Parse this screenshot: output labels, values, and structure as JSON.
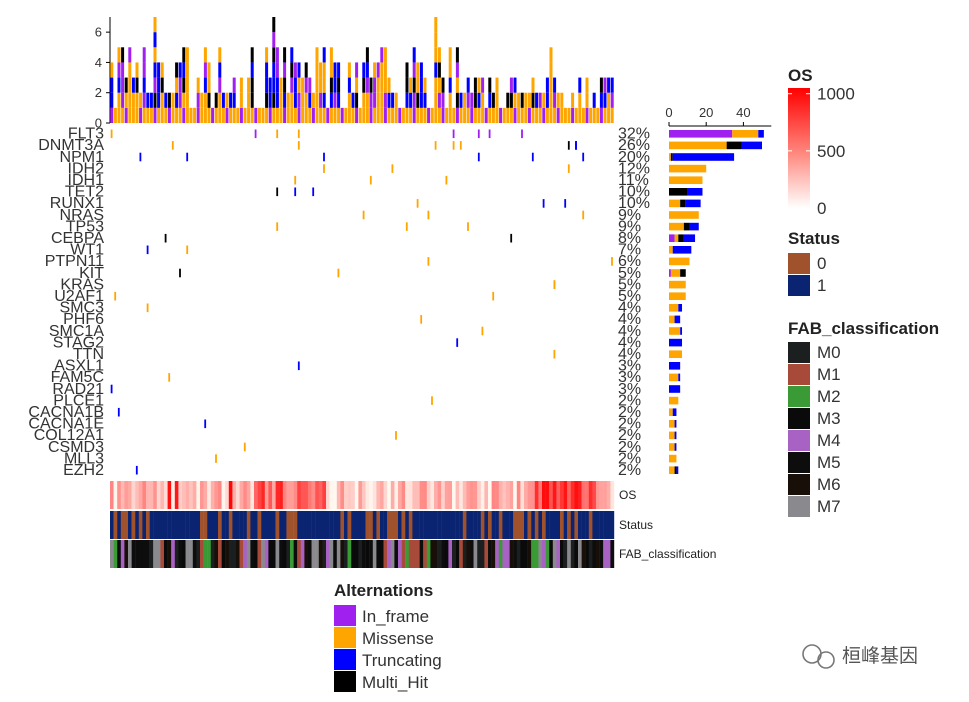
{
  "chart_data": {
    "type": "oncoplot",
    "top_barplot": {
      "y_ticks": [
        "0",
        "2",
        "4",
        "6"
      ],
      "y_range": [
        0,
        7
      ]
    },
    "right_barplot": {
      "x_ticks": [
        "0",
        "20",
        "40"
      ],
      "x_range": [
        0,
        55
      ]
    },
    "genes": [
      {
        "name": "FLT3",
        "pct": "32%",
        "counts": {
          "In_frame": 34,
          "Missense": 14,
          "Truncating": 3,
          "Multi_Hit": 0
        }
      },
      {
        "name": "DNMT3A",
        "pct": "26%",
        "counts": {
          "In_frame": 0,
          "Missense": 31,
          "Truncating": 11,
          "Multi_Hit": 8
        }
      },
      {
        "name": "NPM1",
        "pct": "20%",
        "counts": {
          "In_frame": 0,
          "Missense": 1,
          "Truncating": 33,
          "Multi_Hit": 1
        }
      },
      {
        "name": "IDH2",
        "pct": "12%",
        "counts": {
          "In_frame": 0,
          "Missense": 20,
          "Truncating": 0,
          "Multi_Hit": 0
        }
      },
      {
        "name": "IDH1",
        "pct": "11%",
        "counts": {
          "In_frame": 0,
          "Missense": 18,
          "Truncating": 0,
          "Multi_Hit": 0
        }
      },
      {
        "name": "TET2",
        "pct": "10%",
        "counts": {
          "In_frame": 0,
          "Missense": 0,
          "Truncating": 8,
          "Multi_Hit": 10
        }
      },
      {
        "name": "RUNX1",
        "pct": "10%",
        "counts": {
          "In_frame": 0,
          "Missense": 6,
          "Truncating": 8,
          "Multi_Hit": 3
        }
      },
      {
        "name": "NRAS",
        "pct": "9%",
        "counts": {
          "In_frame": 0,
          "Missense": 16,
          "Truncating": 0,
          "Multi_Hit": 0
        }
      },
      {
        "name": "TP53",
        "pct": "9%",
        "counts": {
          "In_frame": 0,
          "Missense": 8,
          "Truncating": 5,
          "Multi_Hit": 3
        }
      },
      {
        "name": "CEBPA",
        "pct": "8%",
        "counts": {
          "In_frame": 3,
          "Missense": 2,
          "Truncating": 6,
          "Multi_Hit": 3
        }
      },
      {
        "name": "WT1",
        "pct": "7%",
        "counts": {
          "In_frame": 0,
          "Missense": 2,
          "Truncating": 10,
          "Multi_Hit": 0
        }
      },
      {
        "name": "PTPN11",
        "pct": "6%",
        "counts": {
          "In_frame": 0,
          "Missense": 11,
          "Truncating": 0,
          "Multi_Hit": 0
        }
      },
      {
        "name": "KIT",
        "pct": "5%",
        "counts": {
          "In_frame": 1,
          "Missense": 5,
          "Truncating": 0,
          "Multi_Hit": 3
        }
      },
      {
        "name": "KRAS",
        "pct": "5%",
        "counts": {
          "In_frame": 0,
          "Missense": 9,
          "Truncating": 0,
          "Multi_Hit": 0
        }
      },
      {
        "name": "U2AF1",
        "pct": "5%",
        "counts": {
          "In_frame": 0,
          "Missense": 9,
          "Truncating": 0,
          "Multi_Hit": 0
        }
      },
      {
        "name": "SMC3",
        "pct": "4%",
        "counts": {
          "In_frame": 0,
          "Missense": 5,
          "Truncating": 2,
          "Multi_Hit": 0
        }
      },
      {
        "name": "PHF6",
        "pct": "4%",
        "counts": {
          "In_frame": 0,
          "Missense": 3,
          "Truncating": 3,
          "Multi_Hit": 0
        }
      },
      {
        "name": "SMC1A",
        "pct": "4%",
        "counts": {
          "In_frame": 0,
          "Missense": 6,
          "Truncating": 1,
          "Multi_Hit": 0
        }
      },
      {
        "name": "STAG2",
        "pct": "4%",
        "counts": {
          "In_frame": 0,
          "Missense": 0,
          "Truncating": 7,
          "Multi_Hit": 0
        }
      },
      {
        "name": "TTN",
        "pct": "4%",
        "counts": {
          "In_frame": 0,
          "Missense": 7,
          "Truncating": 0,
          "Multi_Hit": 0
        }
      },
      {
        "name": "ASXL1",
        "pct": "3%",
        "counts": {
          "In_frame": 0,
          "Missense": 0,
          "Truncating": 6,
          "Multi_Hit": 0
        }
      },
      {
        "name": "FAM5C",
        "pct": "3%",
        "counts": {
          "In_frame": 0,
          "Missense": 5,
          "Truncating": 1,
          "Multi_Hit": 0
        }
      },
      {
        "name": "RAD21",
        "pct": "3%",
        "counts": {
          "In_frame": 0,
          "Missense": 0,
          "Truncating": 6,
          "Multi_Hit": 0
        }
      },
      {
        "name": "PLCE1",
        "pct": "2%",
        "counts": {
          "In_frame": 0,
          "Missense": 5,
          "Truncating": 0,
          "Multi_Hit": 0
        }
      },
      {
        "name": "CACNA1B",
        "pct": "2%",
        "counts": {
          "In_frame": 0,
          "Missense": 2,
          "Truncating": 2,
          "Multi_Hit": 0
        }
      },
      {
        "name": "CACNA1E",
        "pct": "2%",
        "counts": {
          "In_frame": 0,
          "Missense": 3,
          "Truncating": 1,
          "Multi_Hit": 0
        }
      },
      {
        "name": "COL12A1",
        "pct": "2%",
        "counts": {
          "In_frame": 0,
          "Missense": 3,
          "Truncating": 1,
          "Multi_Hit": 0
        }
      },
      {
        "name": "CSMD3",
        "pct": "2%",
        "counts": {
          "In_frame": 0,
          "Missense": 3,
          "Truncating": 1,
          "Multi_Hit": 0
        }
      },
      {
        "name": "MLL3",
        "pct": "2%",
        "counts": {
          "In_frame": 0,
          "Missense": 4,
          "Truncating": 0,
          "Multi_Hit": 0
        }
      },
      {
        "name": "EZH2",
        "pct": "2%",
        "counts": {
          "In_frame": 0,
          "Missense": 3,
          "Truncating": 1,
          "Multi_Hit": 1
        }
      }
    ],
    "annotation_tracks": [
      "OS",
      "Status",
      "FAB_classification"
    ],
    "os_legend": {
      "title": "OS",
      "ticks": [
        "1000",
        "500",
        "0"
      ],
      "range": [
        0,
        1050
      ]
    },
    "status_legend": {
      "title": "Status",
      "items": [
        {
          "label": "0",
          "color": "#a0522d"
        },
        {
          "label": "1",
          "color": "#0a2472"
        }
      ]
    },
    "fab_legend": {
      "title": "FAB_classification",
      "items": [
        {
          "label": "M0",
          "color": "#1b1f20"
        },
        {
          "label": "M1",
          "color": "#a84a3a"
        },
        {
          "label": "M2",
          "color": "#3a9a35"
        },
        {
          "label": "M3",
          "color": "#0a0a0a"
        },
        {
          "label": "M4",
          "color": "#a862c4"
        },
        {
          "label": "M5",
          "color": "#0d0d0d"
        },
        {
          "label": "M6",
          "color": "#181008"
        },
        {
          "label": "M7",
          "color": "#8a8a8e"
        }
      ]
    },
    "alterations_legend": {
      "title": "Alternations",
      "items": [
        {
          "label": "In_frame",
          "color": "#a020f0"
        },
        {
          "label": "Missense",
          "color": "#ffa500"
        },
        {
          "label": "Truncating",
          "color": "#0000ff"
        },
        {
          "label": "Multi_Hit",
          "color": "#000000"
        }
      ]
    }
  },
  "watermark": {
    "text": "桓峰基因"
  }
}
